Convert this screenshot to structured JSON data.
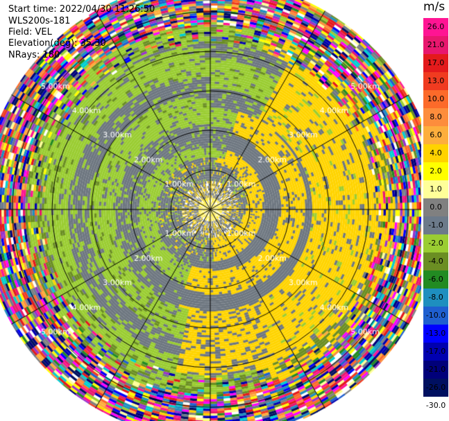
{
  "header": {
    "start_time": "Start time: 2022/04/30 11:26:50",
    "instrument": "WLS200s-181",
    "field": "Field: VEL",
    "elevation": "Elevation(deg): 35.30",
    "nrays": "NRays: 180"
  },
  "chart_data": {
    "type": "ppi",
    "field": "VEL",
    "units": "m/s",
    "nrays": 180,
    "range_rings_km": [
      1,
      2,
      3,
      4,
      5
    ],
    "range_ring_labels": [
      "1.00km",
      "2.00km",
      "3.00km",
      "4.00km",
      "5.00km"
    ],
    "max_range_km": 5.8,
    "spokes_deg_step": 30,
    "velocity_pattern": [
      {
        "r_from_km": 0.0,
        "r_to_km": 0.3,
        "value": 2.0
      },
      {
        "r_from_km": 0.3,
        "r_to_km": 1.3,
        "value": -0.5,
        "note_shown": "mixed gray/yellow"
      },
      {
        "r_from_km": 1.3,
        "r_to_km": 2.6,
        "value": -1.5,
        "east_side_value": 3.0
      },
      {
        "r_from_km": 2.6,
        "r_to_km": 4.2,
        "value": -2.0,
        "east_side_value": 3.0
      },
      {
        "r_from_km": 4.2,
        "r_to_km": 5.8,
        "value": "noise"
      }
    ],
    "colorbar": {
      "unit_label": "m/s",
      "ticks": [
        "26.0",
        "21.0",
        "17.0",
        "13.0",
        "10.0",
        "8.0",
        "6.0",
        "4.0",
        "2.0",
        "1.0",
        "0.0",
        "-1.0",
        "-2.0",
        "-4.0",
        "-6.0",
        "-8.0",
        "-10.0",
        "-13.0",
        "-17.0",
        "-21.0",
        "-26.0",
        "-30.0"
      ],
      "colors": [
        "#ff1493",
        "#e8176e",
        "#e31a1c",
        "#f03b20",
        "#fc6a2a",
        "#fd8d3c",
        "#fdae3c",
        "#ffd300",
        "#ffff00",
        "#ffff99",
        "#808080",
        "#6c7a8a",
        "#9acd32",
        "#6b8e23",
        "#228b22",
        "#1e8fbf",
        "#1f5fd0",
        "#0000ff",
        "#0000b0",
        "#00007a",
        "#001060"
      ]
    }
  }
}
